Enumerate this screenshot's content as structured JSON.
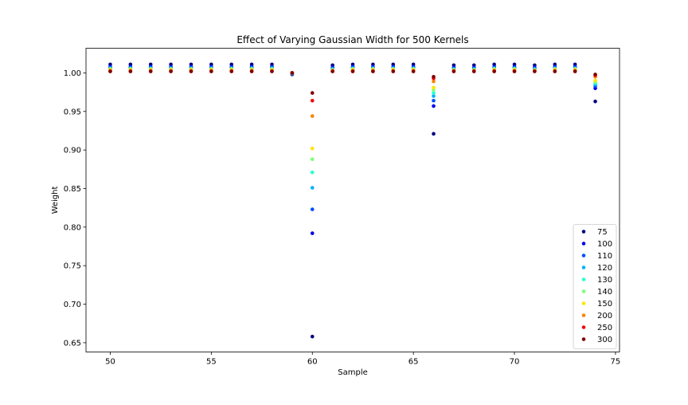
{
  "chart_data": {
    "type": "scatter",
    "title": "Effect of Varying Gaussian Width for 500 Kernels",
    "xlabel": "Sample",
    "ylabel": "Weight",
    "xlim": [
      48.8,
      75.2
    ],
    "ylim": [
      0.638,
      1.032
    ],
    "xticks": [
      50,
      55,
      60,
      65,
      70,
      75
    ],
    "yticks": [
      0.65,
      0.7,
      0.75,
      0.8,
      0.85,
      0.9,
      0.95,
      1.0
    ],
    "grid": false,
    "legend_position": "lower right",
    "x": [
      50,
      51,
      52,
      53,
      54,
      55,
      56,
      57,
      58,
      59,
      60,
      61,
      62,
      63,
      64,
      65,
      66,
      67,
      68,
      69,
      70,
      71,
      72,
      73,
      74
    ],
    "series": [
      {
        "name": "75",
        "color": "#00007f",
        "values": [
          1.011,
          1.011,
          1.011,
          1.011,
          1.011,
          1.011,
          1.011,
          1.011,
          1.011,
          0.998,
          0.658,
          1.01,
          1.011,
          1.011,
          1.011,
          1.011,
          0.921,
          1.01,
          1.01,
          1.011,
          1.011,
          1.01,
          1.011,
          1.011,
          0.963
        ]
      },
      {
        "name": "100",
        "color": "#0000f1",
        "values": [
          1.008,
          1.008,
          1.008,
          1.008,
          1.008,
          1.008,
          1.008,
          1.008,
          1.008,
          0.999,
          0.792,
          1.007,
          1.008,
          1.008,
          1.008,
          1.008,
          0.957,
          1.007,
          1.007,
          1.008,
          1.008,
          1.007,
          1.008,
          1.008,
          0.98
        ]
      },
      {
        "name": "110",
        "color": "#004dff",
        "values": [
          1.007,
          1.007,
          1.007,
          1.007,
          1.007,
          1.007,
          1.007,
          1.007,
          1.007,
          0.999,
          0.823,
          1.006,
          1.007,
          1.007,
          1.007,
          1.007,
          0.964,
          1.006,
          1.006,
          1.007,
          1.007,
          1.006,
          1.007,
          1.007,
          0.983
        ]
      },
      {
        "name": "120",
        "color": "#00b1ff",
        "values": [
          1.006,
          1.006,
          1.006,
          1.006,
          1.006,
          1.006,
          1.006,
          1.006,
          1.006,
          0.999,
          0.851,
          1.005,
          1.006,
          1.006,
          1.006,
          1.006,
          0.97,
          1.005,
          1.005,
          1.006,
          1.006,
          1.005,
          1.006,
          1.006,
          0.985
        ]
      },
      {
        "name": "130",
        "color": "#29ffce",
        "values": [
          1.005,
          1.005,
          1.005,
          1.005,
          1.005,
          1.005,
          1.005,
          1.005,
          1.005,
          1.0,
          0.871,
          1.004,
          1.005,
          1.005,
          1.005,
          1.005,
          0.974,
          1.004,
          1.004,
          1.005,
          1.005,
          1.004,
          1.005,
          1.005,
          0.987
        ]
      },
      {
        "name": "140",
        "color": "#7dff7a",
        "values": [
          1.005,
          1.005,
          1.005,
          1.005,
          1.005,
          1.005,
          1.005,
          1.005,
          1.005,
          1.0,
          0.888,
          1.004,
          1.005,
          1.005,
          1.005,
          1.005,
          0.978,
          1.004,
          1.004,
          1.005,
          1.005,
          1.004,
          1.005,
          1.005,
          0.989
        ]
      },
      {
        "name": "150",
        "color": "#ffe500",
        "values": [
          1.004,
          1.004,
          1.004,
          1.004,
          1.004,
          1.004,
          1.004,
          1.004,
          1.004,
          1.0,
          0.902,
          1.003,
          1.004,
          1.004,
          1.004,
          1.004,
          0.981,
          1.003,
          1.003,
          1.004,
          1.004,
          1.003,
          1.004,
          1.004,
          0.99
        ]
      },
      {
        "name": "200",
        "color": "#ff8200",
        "values": [
          1.003,
          1.003,
          1.003,
          1.003,
          1.003,
          1.003,
          1.003,
          1.003,
          1.003,
          1.0,
          0.944,
          1.003,
          1.003,
          1.003,
          1.003,
          1.003,
          0.989,
          1.003,
          1.003,
          1.003,
          1.003,
          1.003,
          1.003,
          1.003,
          0.995
        ]
      },
      {
        "name": "250",
        "color": "#f10808",
        "values": [
          1.002,
          1.002,
          1.002,
          1.002,
          1.002,
          1.002,
          1.002,
          1.002,
          1.002,
          1.0,
          0.964,
          1.002,
          1.002,
          1.002,
          1.002,
          1.002,
          0.993,
          1.002,
          1.002,
          1.002,
          1.002,
          1.002,
          1.002,
          1.002,
          0.997
        ]
      },
      {
        "name": "300",
        "color": "#7f0000",
        "values": [
          1.002,
          1.002,
          1.002,
          1.002,
          1.002,
          1.002,
          1.002,
          1.002,
          1.002,
          1.0,
          0.974,
          1.002,
          1.002,
          1.002,
          1.002,
          1.002,
          0.995,
          1.002,
          1.002,
          1.002,
          1.002,
          1.002,
          1.002,
          1.002,
          0.998
        ]
      }
    ]
  }
}
